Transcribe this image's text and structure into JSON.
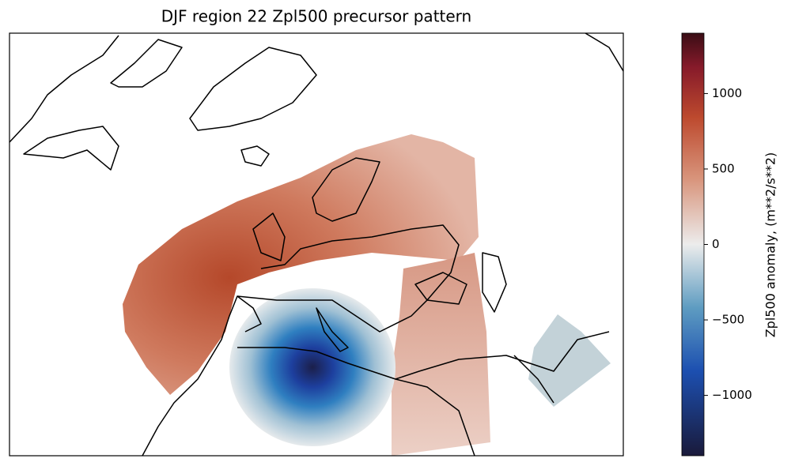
{
  "title": "DJF region 22 Zpl500 precursor pattern",
  "colorbar": {
    "label": "Zpl500 anomaly, (m**2/s**2)",
    "lim": [
      -1400,
      1400
    ],
    "ticks": [
      1000,
      500,
      0,
      {
        "value": -500,
        "label": "−500"
      },
      {
        "value": -1000,
        "label": "−1000"
      }
    ]
  }
}
